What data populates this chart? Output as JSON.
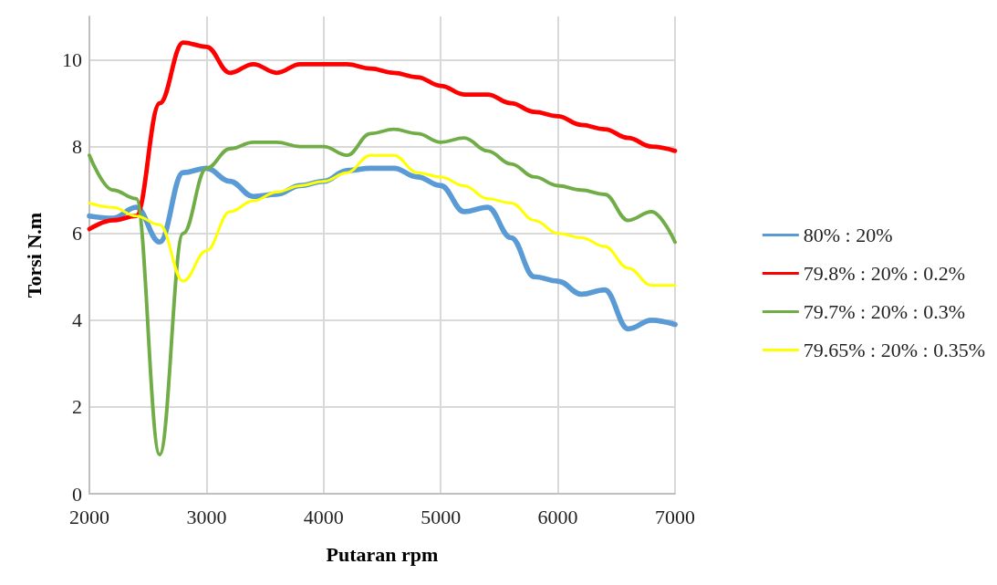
{
  "chart_data": {
    "type": "line",
    "xlabel": "Putaran rpm",
    "ylabel": "Torsi N.m",
    "x": [
      2000,
      2200,
      2400,
      2600,
      2800,
      3000,
      3200,
      3400,
      3600,
      3800,
      4000,
      4200,
      4400,
      4600,
      4800,
      5000,
      5200,
      5400,
      5600,
      5800,
      6000,
      6200,
      6400,
      6600,
      6800,
      7000
    ],
    "series": [
      {
        "name": "80% : 20%",
        "color": "#5b9bd5",
        "values": [
          6.4,
          6.35,
          6.6,
          5.8,
          7.4,
          7.5,
          7.2,
          6.85,
          6.9,
          7.1,
          7.2,
          7.45,
          7.5,
          7.5,
          7.3,
          7.1,
          6.5,
          6.6,
          5.9,
          5.0,
          4.9,
          4.6,
          4.7,
          3.8,
          4.0,
          3.9
        ]
      },
      {
        "name": "79.8% : 20% : 0.2%",
        "color": "#ff0000",
        "values": [
          6.1,
          6.3,
          6.4,
          9.0,
          10.4,
          10.3,
          9.7,
          9.9,
          9.7,
          9.9,
          9.9,
          9.9,
          9.8,
          9.7,
          9.6,
          9.4,
          9.2,
          9.2,
          9.0,
          8.8,
          8.7,
          8.5,
          8.4,
          8.2,
          8.0,
          7.9
        ]
      },
      {
        "name": "79.7% : 20% : 0.3%",
        "color": "#70ad47",
        "values": [
          7.8,
          7.0,
          6.8,
          0.9,
          6.0,
          7.5,
          7.95,
          8.1,
          8.1,
          8.0,
          8.0,
          7.8,
          8.3,
          8.4,
          8.3,
          8.1,
          8.2,
          7.9,
          7.6,
          7.3,
          7.1,
          7.0,
          6.9,
          6.3,
          6.5,
          5.8
        ]
      },
      {
        "name": "79.65% : 20% : 0.35%",
        "color": "#ffff00",
        "values": [
          6.7,
          6.6,
          6.4,
          6.2,
          4.9,
          5.6,
          6.5,
          6.75,
          6.95,
          7.1,
          7.2,
          7.4,
          7.8,
          7.8,
          7.4,
          7.3,
          7.1,
          6.8,
          6.7,
          6.3,
          6.0,
          5.9,
          5.7,
          5.2,
          4.8,
          4.8
        ]
      }
    ],
    "xlim": [
      2000,
      7000
    ],
    "xticks": [
      2000,
      3000,
      4000,
      5000,
      6000,
      7000
    ],
    "ylim": [
      0,
      11
    ],
    "yticks": [
      0,
      2,
      4,
      6,
      8,
      10
    ],
    "grid": true,
    "legend": "right",
    "marker": "none",
    "line_style": "solid"
  }
}
